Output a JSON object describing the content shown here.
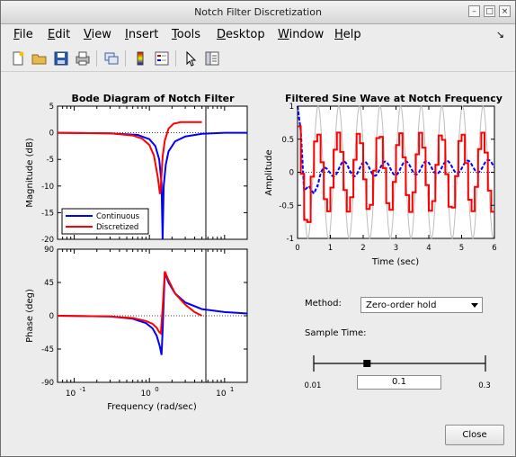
{
  "window": {
    "title": "Notch Filter Discretization",
    "minimize": "–",
    "maximize": "□",
    "close": "×"
  },
  "menu": {
    "items": [
      {
        "label": "File",
        "key": "F",
        "rest": "ile"
      },
      {
        "label": "Edit",
        "key": "E",
        "rest": "dit"
      },
      {
        "label": "View",
        "key": "V",
        "rest": "iew"
      },
      {
        "label": "Insert",
        "key": "I",
        "rest": "nsert"
      },
      {
        "label": "Tools",
        "key": "T",
        "rest": "ools"
      },
      {
        "label": "Desktop",
        "key": "D",
        "rest": "esktop"
      },
      {
        "label": "Window",
        "key": "W",
        "rest": "indow"
      },
      {
        "label": "Help",
        "key": "H",
        "rest": "elp"
      }
    ],
    "dock_icon": "↘"
  },
  "toolbar": {
    "icons": [
      "new-figure-icon",
      "open-file-icon",
      "save-icon",
      "print-icon",
      "link-icon",
      "colorbar-icon",
      "legend-icon",
      "pointer-icon",
      "property-editor-icon"
    ]
  },
  "bode": {
    "title": "Bode Diagram of Notch Filter",
    "mag_ylabel": "Magnitude (dB)",
    "phase_ylabel": "Phase (deg)",
    "xlabel": "Frequency (rad/sec)",
    "mag_ticks": [
      "5",
      "0",
      "-5",
      "-10",
      "-15",
      "-20"
    ],
    "phase_ticks": [
      "90",
      "45",
      "0",
      "-45",
      "-90"
    ],
    "x_ticks": [
      {
        "base": "10",
        "exp": "-1"
      },
      {
        "base": "10",
        "exp": "0"
      },
      {
        "base": "10",
        "exp": "1"
      }
    ],
    "legend": [
      "Continuous",
      "Discretized"
    ]
  },
  "sine": {
    "title": "Filtered Sine Wave at Notch Frequency",
    "ylabel": "Amplitude",
    "xlabel": "Time (sec)",
    "y_ticks": [
      "1",
      "0.5",
      "0",
      "-0.5",
      "-1"
    ],
    "x_ticks": [
      "0",
      "1",
      "2",
      "3",
      "4",
      "5",
      "6"
    ]
  },
  "controls": {
    "method_label": "Method:",
    "method_value": "Zero-order hold",
    "sample_time_label": "Sample Time:",
    "slider_min": "0.01",
    "slider_max": "0.3",
    "sample_value": "0.1",
    "close_label": "Close"
  },
  "chart_data": [
    {
      "type": "line",
      "title": "Bode Diagram of Notch Filter",
      "xlabel": "Frequency (rad/sec)",
      "ylabel": "Magnitude (dB)",
      "xscale": "log",
      "xlim": [
        0.06,
        20
      ],
      "ylim": [
        -20,
        5
      ],
      "grid": false,
      "legend_position": "bottom-left",
      "series": [
        {
          "name": "Continuous",
          "color": "#0000ff",
          "x": [
            0.06,
            0.3,
            0.7,
            1.0,
            1.2,
            1.35,
            1.45,
            1.5,
            1.55,
            1.65,
            1.8,
            2.2,
            3,
            5,
            10,
            20
          ],
          "y": [
            0,
            -0.1,
            -0.4,
            -1.2,
            -2.5,
            -5,
            -9.5,
            -20,
            -10,
            -6,
            -3.5,
            -1.6,
            -0.7,
            -0.2,
            0,
            0
          ]
        },
        {
          "name": "Discretized",
          "color": "#ff0000",
          "x": [
            0.06,
            0.3,
            0.6,
            0.8,
            1.0,
            1.15,
            1.3,
            1.38,
            1.42,
            1.5,
            1.6,
            1.8,
            2.1,
            2.6,
            3.2,
            4,
            5
          ],
          "y": [
            0,
            -0.1,
            -0.5,
            -1.1,
            -2.3,
            -4.3,
            -8.5,
            -11.5,
            -10,
            -4.5,
            -1.5,
            0.8,
            1.7,
            2,
            2,
            2,
            2
          ]
        }
      ],
      "annotations": [
        {
          "type": "vertical_line",
          "x": 5
        }
      ]
    },
    {
      "type": "line",
      "title": "",
      "xlabel": "Frequency (rad/sec)",
      "ylabel": "Phase (deg)",
      "xscale": "log",
      "xlim": [
        0.06,
        20
      ],
      "ylim": [
        -90,
        90
      ],
      "grid": false,
      "series": [
        {
          "name": "Continuous",
          "color": "#0000ff",
          "x": [
            0.06,
            0.3,
            0.6,
            0.9,
            1.1,
            1.25,
            1.38,
            1.45,
            1.5,
            1.6,
            1.8,
            2.2,
            3,
            5,
            10,
            20
          ],
          "y": [
            0,
            -1,
            -4,
            -10,
            -17,
            -27,
            -42,
            -53,
            -20,
            58,
            45,
            30,
            18,
            9,
            5,
            3
          ]
        },
        {
          "name": "Discretized",
          "color": "#ff0000",
          "x": [
            0.06,
            0.3,
            0.6,
            0.9,
            1.1,
            1.25,
            1.35,
            1.42,
            1.5,
            1.6,
            1.8,
            2.2,
            3,
            4,
            5
          ],
          "y": [
            0,
            -1,
            -3,
            -7,
            -11,
            -16,
            -22,
            -24,
            10,
            60,
            48,
            30,
            15,
            5,
            0
          ]
        }
      ],
      "annotations": [
        {
          "type": "vertical_line",
          "x": 5
        }
      ]
    },
    {
      "type": "line",
      "title": "Filtered Sine Wave at Notch Frequency",
      "xlabel": "Time (sec)",
      "ylabel": "Amplitude",
      "xlim": [
        0,
        6
      ],
      "ylim": [
        -1,
        1
      ],
      "grid": false,
      "series": [
        {
          "name": "",
          "color": "#c0c0c0",
          "kind": "sine",
          "amplitude": 1,
          "omega": 10,
          "desc": "input sine, 1 cycle per ~0.63 s"
        },
        {
          "name": "",
          "color": "#0000ff",
          "kind": "decaying-plus-steady",
          "x": [
            0,
            0.1,
            0.2,
            0.35,
            0.5,
            0.7,
            1,
            2,
            3,
            4,
            5,
            6
          ],
          "y": [
            1,
            0.6,
            -0.3,
            -0.2,
            -0.3,
            -0.1,
            0.05,
            0.05,
            0.06,
            0.07,
            0.08,
            0.1
          ]
        },
        {
          "name": "",
          "color": "#ff0000",
          "kind": "zoh-steps",
          "sample_time": 0.1,
          "amplitude": 0.6
        }
      ]
    }
  ]
}
